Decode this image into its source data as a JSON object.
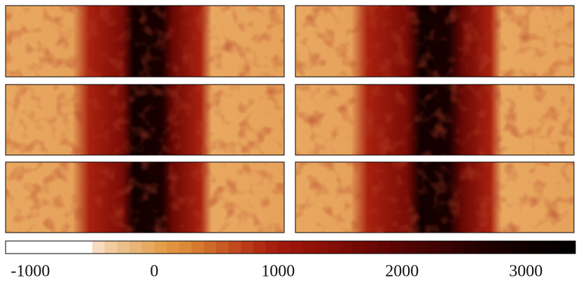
{
  "chart_data": {
    "type": "heatmap",
    "colorbar": {
      "lim": [
        -1200,
        3400
      ],
      "ticks": [
        -1000,
        0,
        1000,
        2000,
        3000
      ],
      "colors": [
        "#ffffff",
        "#ffffff",
        "#ffffff",
        "#ffffff",
        "#ffffff",
        "#ffffff",
        "#ffffff",
        "#f8dcc0",
        "#f2cc9e",
        "#ecc08a",
        "#e8b478",
        "#e6aa62",
        "#e49e4c",
        "#e09440",
        "#dc8a38",
        "#d67a30",
        "#cf6a2a",
        "#c85a24",
        "#c04a1e",
        "#b83a18",
        "#b02c12",
        "#a8200e",
        "#a0180c",
        "#9a140a",
        "#921208",
        "#8a1008",
        "#820e06",
        "#7a0c06",
        "#720a04",
        "#6a0804",
        "#620604",
        "#5a0404",
        "#520404",
        "#4a0404",
        "#420303",
        "#3a0202",
        "#320202",
        "#2a0101",
        "#220000",
        "#1c0000",
        "#160000",
        "#120000",
        "#0e0000",
        "#0a0000",
        "#060000",
        "#030000"
      ]
    }
  }
}
